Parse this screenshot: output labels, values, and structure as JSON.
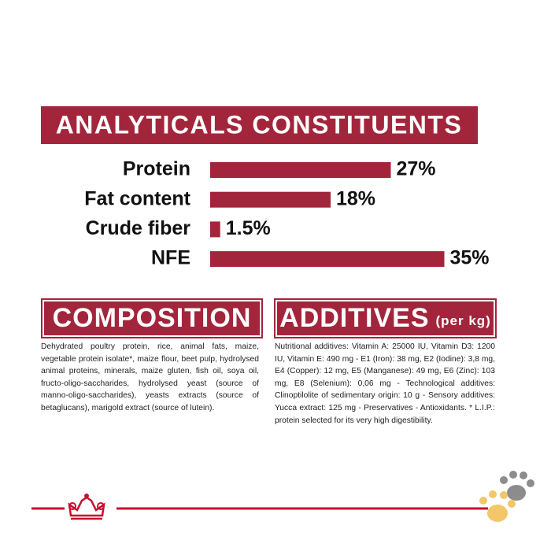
{
  "chart_data": {
    "type": "bar",
    "orientation": "horizontal",
    "title": "ANALYTICALS CONSTITUENTS",
    "categories": [
      "Protein",
      "Fat content",
      "Crude fiber",
      "NFE"
    ],
    "values": [
      27,
      18,
      1.5,
      35
    ],
    "value_labels": [
      "27%",
      "18%",
      "1.5%",
      "35%"
    ],
    "color": "#a3253c"
  },
  "composition": {
    "title": "COMPOSITION",
    "text": "Dehydrated poultry protein, rice, animal fats, maize, vegetable protein isolate*, maize flour, beet pulp, hydrolysed animal proteins, minerals, maize gluten, fish oil, soya oil, fructo-oligo-saccharides, hydrolysed yeast (source of manno-oligo-saccharides), yeasts extracts (source of betaglucans), marigold extract (source of lutein)."
  },
  "additives": {
    "title": "ADDITIVES",
    "unit": "(per kg)",
    "text": "Nutritional additives: Vitamin A: 25000 IU, Vitamin D3: 1200 IU, Vitamin E: 490 mg - E1 (Iron): 38 mg, E2 (Iodine): 3,8 mg, E4 (Copper): 12 mg, E5 (Manganese): 49 mg, E6 (Zinc): 103 mg, E8 (Selenium): 0,06 mg - Technological additives: Clinoptilolite of sedimentary origin: 10 g - Sensory additives: Yucca extract: 125 mg - Preservatives - Antioxidants. * L.I.P.: protein selected for its very high digestibility."
  }
}
